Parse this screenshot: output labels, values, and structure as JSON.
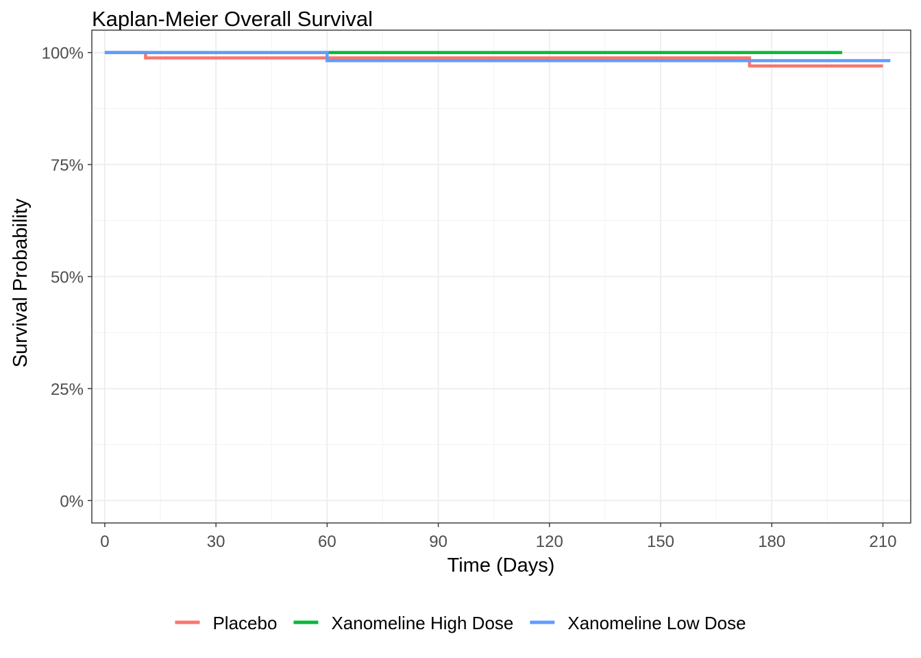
{
  "chart_data": {
    "type": "line",
    "step": true,
    "title": "Kaplan-Meier Overall Survival",
    "xlabel": "Time (Days)",
    "ylabel": "Survival Probability",
    "xlim": [
      -3.5,
      217.5
    ],
    "ylim": [
      -0.05,
      1.05
    ],
    "x_ticks": [
      0,
      30,
      60,
      90,
      120,
      150,
      180,
      210
    ],
    "x_tick_labels": [
      "0",
      "30",
      "60",
      "90",
      "120",
      "150",
      "180",
      "210"
    ],
    "y_ticks": [
      0,
      0.25,
      0.5,
      0.75,
      1.0
    ],
    "y_tick_labels": [
      "0%",
      "25%",
      "50%",
      "75%",
      "100%"
    ],
    "grid": true,
    "legend_position": "bottom",
    "series": [
      {
        "name": "Placebo",
        "color": "#F8766D",
        "x": [
          0,
          11,
          174,
          210
        ],
        "y": [
          1.0,
          0.988,
          0.97,
          0.97
        ]
      },
      {
        "name": "Xanomeline High Dose",
        "color": "#00BA38",
        "x": [
          0,
          199
        ],
        "y": [
          1.0,
          1.0
        ]
      },
      {
        "name": "Xanomeline Low Dose",
        "color": "#619CFF",
        "x": [
          0,
          60,
          174,
          212
        ],
        "y": [
          1.0,
          0.982,
          0.982,
          0.982
        ]
      }
    ]
  }
}
